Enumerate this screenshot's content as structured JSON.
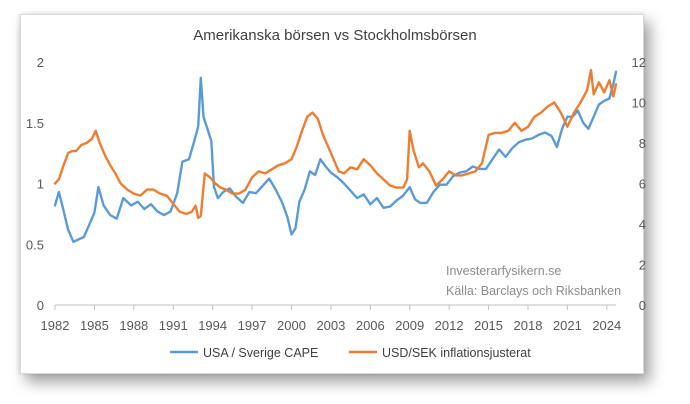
{
  "chart_data": {
    "type": "line",
    "title": "Amerikanska börsen vs Stockholmsbörsen",
    "annotations": [
      "Investerarfysikern.se",
      "Källa: Barclays och Riksbanken"
    ],
    "xlabel": "",
    "ylabel": "",
    "x_ticks": [
      "1982",
      "1985",
      "1988",
      "1991",
      "1994",
      "1997",
      "2000",
      "2003",
      "2006",
      "2009",
      "2012",
      "2015",
      "2018",
      "2021",
      "2024"
    ],
    "xlim": [
      1982,
      2024.7
    ],
    "y_left": {
      "ylim": [
        0,
        2
      ],
      "ticks": [
        "0",
        "0.5",
        "1",
        "1.5",
        "2"
      ]
    },
    "y_right": {
      "ylim": [
        0,
        12
      ],
      "ticks": [
        "0",
        "2",
        "4",
        "6",
        "8",
        "10",
        "12"
      ]
    },
    "grid": false,
    "legend_position": "bottom",
    "series": [
      {
        "name": "USA / Sverige CAPE",
        "axis": "left",
        "color": "#5b9bd5",
        "x": [
          1982,
          1982.3,
          1982.6,
          1983,
          1983.4,
          1983.8,
          1984.2,
          1984.6,
          1985,
          1985.3,
          1985.7,
          1986.2,
          1986.7,
          1987.2,
          1987.8,
          1988.3,
          1988.8,
          1989.3,
          1989.8,
          1990.3,
          1990.8,
          1991.3,
          1991.7,
          1992.2,
          1992.6,
          1992.9,
          1993.1,
          1993.3,
          1993.6,
          1993.9,
          1994.1,
          1994.4,
          1994.8,
          1995.3,
          1995.8,
          1996.3,
          1996.8,
          1997.3,
          1997.8,
          1998.3,
          1998.8,
          1999.3,
          1999.7,
          2000,
          2000.3,
          2000.6,
          2001,
          2001.4,
          2001.8,
          2002.2,
          2002.6,
          2003,
          2003.5,
          2004,
          2004.5,
          2005,
          2005.5,
          2006,
          2006.5,
          2007,
          2007.5,
          2008,
          2008.5,
          2009,
          2009.4,
          2009.8,
          2010.3,
          2010.8,
          2011.3,
          2011.8,
          2012.3,
          2012.8,
          2013.3,
          2013.8,
          2014.3,
          2014.8,
          2015.3,
          2015.8,
          2016.3,
          2016.8,
          2017.3,
          2017.8,
          2018.3,
          2018.8,
          2019.3,
          2019.8,
          2020.2,
          2020.6,
          2021,
          2021.4,
          2021.8,
          2022.2,
          2022.6,
          2023,
          2023.4,
          2023.8,
          2024.2,
          2024.5,
          2024.7
        ],
        "values": [
          0.82,
          0.93,
          0.8,
          0.62,
          0.52,
          0.54,
          0.56,
          0.66,
          0.76,
          0.97,
          0.82,
          0.74,
          0.71,
          0.88,
          0.82,
          0.85,
          0.79,
          0.83,
          0.77,
          0.74,
          0.77,
          0.92,
          1.18,
          1.2,
          1.35,
          1.47,
          1.87,
          1.55,
          1.45,
          1.35,
          0.97,
          0.88,
          0.93,
          0.96,
          0.89,
          0.84,
          0.93,
          0.92,
          0.98,
          1.04,
          0.95,
          0.84,
          0.72,
          0.58,
          0.63,
          0.85,
          0.95,
          1.1,
          1.07,
          1.2,
          1.14,
          1.09,
          1.05,
          1.0,
          0.94,
          0.88,
          0.91,
          0.83,
          0.88,
          0.8,
          0.81,
          0.86,
          0.9,
          0.97,
          0.87,
          0.84,
          0.84,
          0.93,
          0.99,
          0.99,
          1.06,
          1.09,
          1.1,
          1.14,
          1.12,
          1.12,
          1.2,
          1.28,
          1.22,
          1.29,
          1.34,
          1.36,
          1.37,
          1.4,
          1.42,
          1.39,
          1.3,
          1.45,
          1.55,
          1.55,
          1.6,
          1.5,
          1.45,
          1.55,
          1.65,
          1.68,
          1.7,
          1.82,
          1.92
        ]
      },
      {
        "name": "USD/SEK inflationsjusterat",
        "axis": "right",
        "color": "#ed7d31",
        "x": [
          1982,
          1982.3,
          1982.6,
          1983,
          1983.3,
          1983.6,
          1984,
          1984.4,
          1984.8,
          1985.1,
          1985.4,
          1985.8,
          1986.2,
          1986.6,
          1987,
          1987.5,
          1988,
          1988.5,
          1989,
          1989.5,
          1990,
          1990.5,
          1991,
          1991.5,
          1992,
          1992.4,
          1992.7,
          1992.9,
          1993.1,
          1993.4,
          1993.8,
          1994.2,
          1994.6,
          1995,
          1995.5,
          1996,
          1996.5,
          1997,
          1997.5,
          1998,
          1998.5,
          1999,
          1999.5,
          2000,
          2000.4,
          2000.8,
          2001.2,
          2001.6,
          2002,
          2002.4,
          2002.8,
          2003.2,
          2003.6,
          2004,
          2004.5,
          2005,
          2005.5,
          2006,
          2006.5,
          2007,
          2007.5,
          2008,
          2008.5,
          2008.8,
          2009,
          2009.3,
          2009.7,
          2010,
          2010.5,
          2011,
          2011.5,
          2012,
          2012.5,
          2013,
          2013.5,
          2014,
          2014.5,
          2015,
          2015.5,
          2016,
          2016.5,
          2017,
          2017.5,
          2018,
          2018.5,
          2019,
          2019.5,
          2020,
          2020.5,
          2021,
          2021.5,
          2022,
          2022.5,
          2022.8,
          2023,
          2023.4,
          2023.8,
          2024.2,
          2024.5,
          2024.7
        ],
        "values": [
          6.0,
          6.2,
          6.8,
          7.5,
          7.6,
          7.6,
          7.9,
          8.0,
          8.2,
          8.6,
          8.0,
          7.4,
          6.9,
          6.5,
          6.0,
          5.7,
          5.5,
          5.4,
          5.7,
          5.7,
          5.5,
          5.4,
          5.0,
          4.6,
          4.5,
          4.6,
          4.9,
          4.3,
          4.4,
          6.5,
          6.3,
          6.0,
          5.8,
          5.7,
          5.5,
          5.5,
          5.7,
          6.3,
          6.6,
          6.5,
          6.7,
          6.9,
          7.0,
          7.2,
          7.8,
          8.6,
          9.3,
          9.5,
          9.2,
          8.4,
          7.8,
          7.2,
          6.6,
          6.5,
          6.8,
          6.7,
          7.2,
          6.9,
          6.5,
          6.2,
          5.9,
          5.8,
          5.8,
          6.2,
          8.6,
          7.6,
          6.8,
          7.0,
          6.6,
          5.9,
          6.2,
          6.6,
          6.4,
          6.4,
          6.5,
          6.6,
          7.0,
          8.4,
          8.5,
          8.5,
          8.6,
          9.0,
          8.6,
          8.8,
          9.3,
          9.5,
          9.8,
          10.0,
          9.5,
          8.8,
          9.5,
          10.0,
          10.6,
          11.6,
          10.4,
          11.0,
          10.5,
          11.1,
          10.3,
          10.9
        ]
      }
    ]
  }
}
